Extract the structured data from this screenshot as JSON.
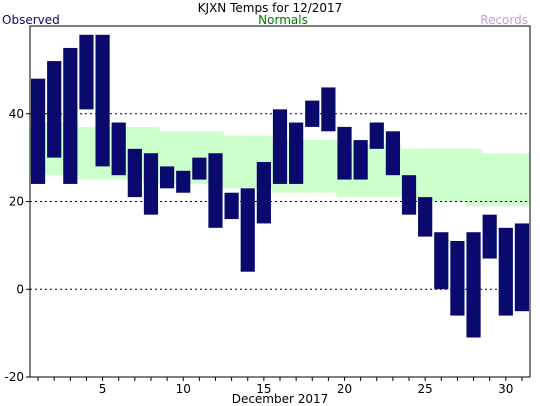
{
  "chart_data": {
    "type": "bar",
    "title": "KJXN Temps for 12/2017",
    "xlabel": "December 2017",
    "ylabel": "",
    "legend": {
      "observed": "Observed",
      "normals": "Normals",
      "records": "Records",
      "placement": "top"
    },
    "colors": {
      "observed": "#0a0a6e",
      "normals": "#ccffcc",
      "records": "#cc99dd",
      "normals_label": "#007700",
      "grid": "#000000"
    },
    "ylim": [
      -20,
      60
    ],
    "xlim": [
      0.5,
      31.5
    ],
    "yticks": [
      -20,
      0,
      20,
      40
    ],
    "xticks": [
      5,
      10,
      15,
      20,
      25,
      30
    ],
    "grid": "dashed horizontal at 0, 20, 40",
    "days": [
      1,
      2,
      3,
      4,
      5,
      6,
      7,
      8,
      9,
      10,
      11,
      12,
      13,
      14,
      15,
      16,
      17,
      18,
      19,
      20,
      21,
      22,
      23,
      24,
      25,
      26,
      27,
      28,
      29,
      30,
      31
    ],
    "series": [
      {
        "name": "Observed",
        "type": "range",
        "high": [
          48,
          52,
          55,
          58,
          58,
          38,
          32,
          31,
          28,
          27,
          30,
          31,
          22,
          23,
          29,
          41,
          38,
          43,
          46,
          37,
          34,
          38,
          36,
          26,
          21,
          13,
          11,
          13,
          17,
          14,
          15
        ],
        "low": [
          24,
          30,
          24,
          41,
          28,
          26,
          21,
          17,
          23,
          22,
          25,
          14,
          16,
          4,
          15,
          24,
          24,
          37,
          36,
          25,
          25,
          32,
          26,
          17,
          12,
          0,
          -6,
          -11,
          7,
          -6,
          -5
        ]
      },
      {
        "name": "Normals",
        "type": "band",
        "high": [
          38,
          38,
          38,
          37,
          37,
          37,
          37,
          37,
          36,
          36,
          36,
          36,
          35,
          35,
          35,
          34,
          34,
          34,
          34,
          33,
          33,
          33,
          33,
          32,
          32,
          32,
          32,
          32,
          31,
          31,
          31
        ],
        "low": [
          26,
          26,
          26,
          25,
          25,
          25,
          25,
          24,
          24,
          24,
          24,
          23,
          23,
          23,
          23,
          22,
          22,
          22,
          22,
          21,
          21,
          21,
          21,
          20,
          20,
          20,
          20,
          19,
          19,
          19,
          19
        ]
      }
    ]
  }
}
